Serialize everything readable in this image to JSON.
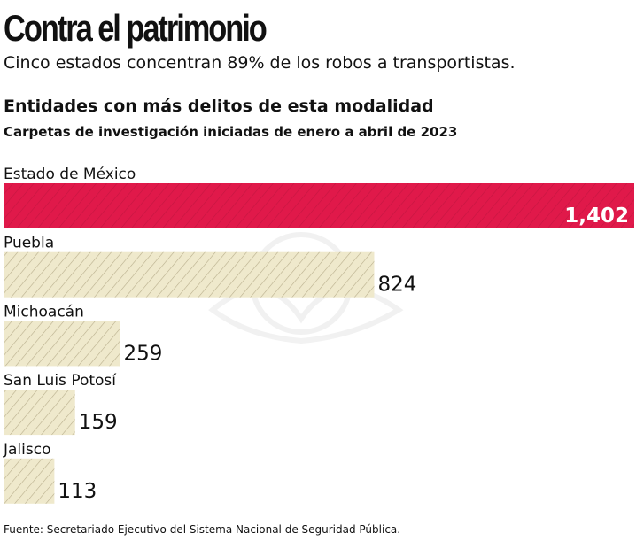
{
  "title": "Contra el patrimonio",
  "subtitle": "Cinco estados concentran 89% de los robos a transportistas.",
  "chart_data": {
    "type": "bar",
    "orientation": "horizontal",
    "title": "Entidades con más delitos de esta modalidad",
    "subtitle": "Carpetas de investigación iniciadas de enero a abril de 2023",
    "categories": [
      "Estado de México",
      "Puebla",
      "Michoacán",
      "San Luis Potosí",
      "Jalisco"
    ],
    "values": [
      1402,
      824,
      259,
      159,
      113
    ],
    "value_labels": [
      "1,402",
      "824",
      "259",
      "159",
      "113"
    ],
    "highlight_color": "#e0194a",
    "bar_color": "#efe9cc",
    "hatch_color": "#b8ae8c",
    "grid": false
  },
  "source": "Fuente: Secretariado Ejecutivo del Sistema Nacional de Seguridad Pública."
}
